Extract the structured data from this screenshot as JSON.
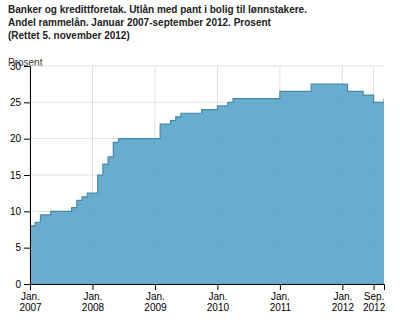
{
  "chart_data": {
    "type": "area",
    "line_style": "step",
    "title": "Banker og kredittforetak. Utlån med pant i bolig til lønnstakere.",
    "subtitle": "Andel rammelån. Januar 2007-september 2012. Prosent",
    "annotations": [
      "(Rettet 5. november 2012)"
    ],
    "ylabel": "Prosent",
    "color": "#4d9fc4",
    "grid": true,
    "ylim": [
      0,
      30
    ],
    "yticks": [
      0,
      5,
      10,
      15,
      20,
      25,
      30
    ],
    "categories": [
      "Jan.\n2007",
      null,
      null,
      null,
      null,
      null,
      null,
      null,
      null,
      null,
      null,
      null,
      "Jan.\n2008",
      null,
      null,
      null,
      null,
      null,
      null,
      null,
      null,
      null,
      null,
      null,
      "Jan.\n2009",
      null,
      null,
      null,
      null,
      null,
      null,
      null,
      null,
      null,
      null,
      null,
      "Jan.\n2010",
      null,
      null,
      null,
      null,
      null,
      null,
      null,
      null,
      null,
      null,
      null,
      "Jan.\n2011",
      null,
      null,
      null,
      null,
      null,
      null,
      null,
      null,
      null,
      null,
      null,
      "Jan.\n2012",
      null,
      null,
      null,
      null,
      null,
      "Sep.\n2012",
      null,
      null
    ],
    "values": [
      8.0,
      8.5,
      9.5,
      9.5,
      10.0,
      10.0,
      10.0,
      10.0,
      10.5,
      11.5,
      12.0,
      12.5,
      12.5,
      15.0,
      16.5,
      17.5,
      19.5,
      20.0,
      20.0,
      20.0,
      20.0,
      20.0,
      20.0,
      20.0,
      20.0,
      22.0,
      22.0,
      22.5,
      23.0,
      23.5,
      23.5,
      23.5,
      23.5,
      24.0,
      24.0,
      24.0,
      24.5,
      24.5,
      25.0,
      25.5,
      25.5,
      25.5,
      25.5,
      25.5,
      25.5,
      25.5,
      25.5,
      25.5,
      26.5,
      26.5,
      26.5,
      26.5,
      26.5,
      26.5,
      27.5,
      27.5,
      27.5,
      27.5,
      27.5,
      27.5,
      27.5,
      26.5,
      26.5,
      26.5,
      26.0,
      26.0,
      25.0,
      25.0,
      25.5
    ]
  }
}
